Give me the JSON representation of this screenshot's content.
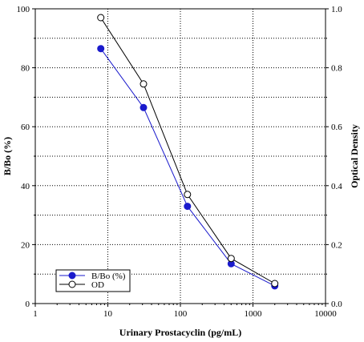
{
  "chart_data": {
    "type": "line",
    "xlabel": "Urinary Prostacyclin (pg/mL)",
    "ylabel": "B/Bo (%)",
    "y2label": "Optical Density",
    "x_scale": "log",
    "xlim": [
      1,
      10000
    ],
    "ylim": [
      0,
      100
    ],
    "y2lim": [
      0,
      1.0
    ],
    "x_ticks": [
      "1",
      "10",
      "100",
      "1000",
      "10000"
    ],
    "y_ticks": [
      "0",
      "20",
      "40",
      "60",
      "80",
      "100"
    ],
    "y2_ticks": [
      "0.0",
      "0.2",
      "0.4",
      "0.6",
      "0.8",
      "1.0"
    ],
    "grid": true,
    "legend_position": "bottom-left",
    "series": [
      {
        "name": "B/Bo (%)",
        "axis": "left",
        "marker": "filled-circle",
        "color": "#1a1acc",
        "x": [
          8,
          31,
          125,
          500,
          2000
        ],
        "y": [
          86.5,
          66.5,
          33,
          13.5,
          6
        ]
      },
      {
        "name": "OD",
        "axis": "right",
        "marker": "open-circle",
        "color": "#000000",
        "x": [
          8,
          31,
          125,
          500,
          2000
        ],
        "y": [
          0.97,
          0.745,
          0.37,
          0.153,
          0.068
        ]
      }
    ]
  }
}
